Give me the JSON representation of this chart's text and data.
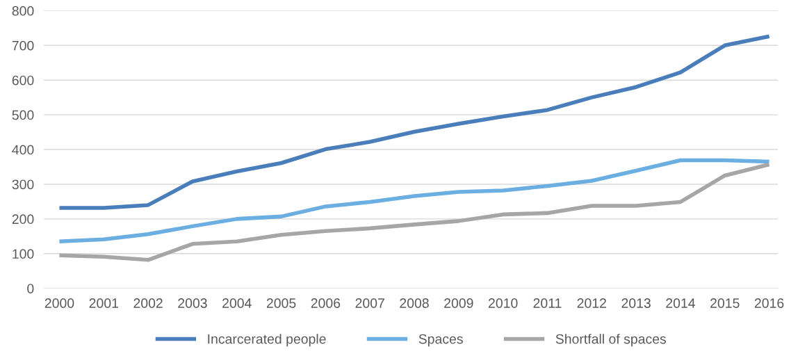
{
  "chart_data": {
    "type": "line",
    "categories": [
      "2000",
      "2001",
      "2002",
      "2003",
      "2004",
      "2005",
      "2006",
      "2007",
      "2008",
      "2009",
      "2010",
      "2011",
      "2012",
      "2013",
      "2014",
      "2015",
      "2016"
    ],
    "series": [
      {
        "name": "Incarcerated people",
        "color": "#4a7ebb",
        "values": [
          232,
          232,
          240,
          308,
          337,
          361,
          401,
          422,
          451,
          474,
          495,
          514,
          550,
          580,
          622,
          700,
          726
        ]
      },
      {
        "name": "Spaces",
        "color": "#6aaee2",
        "values": [
          135,
          141,
          156,
          179,
          200,
          207,
          236,
          249,
          266,
          278,
          282,
          295,
          310,
          339,
          369,
          369,
          365
        ]
      },
      {
        "name": "Shortfall of spaces",
        "color": "#a6a6a6",
        "values": [
          95,
          91,
          82,
          128,
          135,
          154,
          165,
          173,
          184,
          194,
          213,
          217,
          238,
          238,
          249,
          325,
          357
        ]
      }
    ],
    "ylim": [
      0,
      800
    ],
    "yticks": [
      0,
      100,
      200,
      300,
      400,
      500,
      600,
      700,
      800
    ],
    "grid": "y",
    "legend": "bottom",
    "marker": "none",
    "line_style": "solid"
  }
}
